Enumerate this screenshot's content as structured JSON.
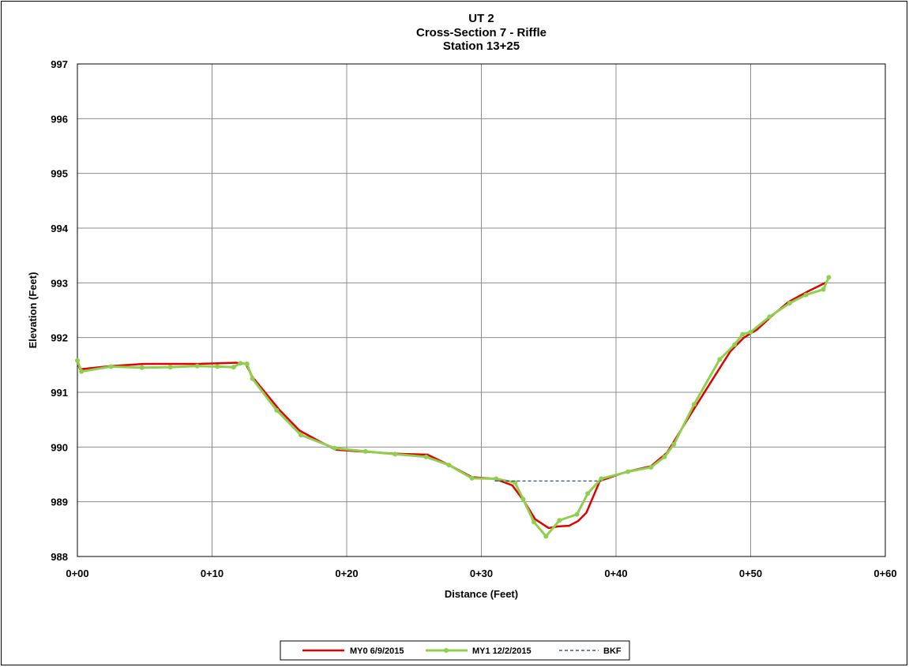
{
  "chart_data": {
    "type": "line",
    "title": [
      "UT 2",
      "Cross-Section 7 - Riffle",
      "Station 13+25"
    ],
    "xlabel": "Distance (Feet)",
    "ylabel": "Elevation (Feet)",
    "xlim": [
      0,
      60
    ],
    "ylim": [
      988,
      997
    ],
    "x_ticks": [
      {
        "value": 0,
        "label": "0+00"
      },
      {
        "value": 10,
        "label": "0+10"
      },
      {
        "value": 20,
        "label": "0+20"
      },
      {
        "value": 30,
        "label": "0+30"
      },
      {
        "value": 40,
        "label": "0+40"
      },
      {
        "value": 50,
        "label": "0+50"
      },
      {
        "value": 60,
        "label": "0+60"
      }
    ],
    "y_ticks": [
      {
        "value": 988,
        "label": "988"
      },
      {
        "value": 989,
        "label": "989"
      },
      {
        "value": 990,
        "label": "990"
      },
      {
        "value": 991,
        "label": "991"
      },
      {
        "value": 992,
        "label": "992"
      },
      {
        "value": 993,
        "label": "993"
      },
      {
        "value": 994,
        "label": "994"
      },
      {
        "value": 995,
        "label": "995"
      },
      {
        "value": 996,
        "label": "996"
      },
      {
        "value": 997,
        "label": "997"
      }
    ],
    "grid": true,
    "legend_position": "bottom",
    "series": [
      {
        "name": "MY0 6/9/2015",
        "color": "#e00000",
        "line_style": "solid",
        "markers": false,
        "points": [
          [
            0.0,
            991.55
          ],
          [
            0.2,
            991.42
          ],
          [
            2.5,
            991.48
          ],
          [
            5.0,
            991.52
          ],
          [
            7.0,
            991.52
          ],
          [
            9.0,
            991.52
          ],
          [
            10.5,
            991.53
          ],
          [
            11.8,
            991.54
          ],
          [
            12.5,
            991.52
          ],
          [
            13.0,
            991.28
          ],
          [
            15.0,
            990.68
          ],
          [
            16.5,
            990.3
          ],
          [
            18.0,
            990.1
          ],
          [
            19.2,
            989.95
          ],
          [
            21.0,
            989.92
          ],
          [
            23.5,
            989.88
          ],
          [
            26.0,
            989.86
          ],
          [
            27.7,
            989.66
          ],
          [
            29.3,
            989.45
          ],
          [
            31.0,
            989.42
          ],
          [
            32.3,
            989.3
          ],
          [
            33.2,
            989.0
          ],
          [
            34.0,
            988.68
          ],
          [
            35.0,
            988.52
          ],
          [
            35.7,
            988.55
          ],
          [
            36.5,
            988.56
          ],
          [
            37.2,
            988.65
          ],
          [
            37.8,
            988.8
          ],
          [
            38.8,
            989.38
          ],
          [
            40.8,
            989.55
          ],
          [
            42.6,
            989.65
          ],
          [
            43.8,
            989.9
          ],
          [
            45.8,
            990.7
          ],
          [
            47.8,
            991.48
          ],
          [
            48.5,
            991.75
          ],
          [
            49.5,
            992.0
          ],
          [
            50.5,
            992.15
          ],
          [
            51.5,
            992.38
          ],
          [
            52.8,
            992.65
          ],
          [
            54.3,
            992.85
          ],
          [
            55.7,
            993.02
          ]
        ]
      },
      {
        "name": "MY1 12/2/2015",
        "color": "#8fcf4f",
        "line_style": "solid",
        "markers": true,
        "points": [
          [
            0.0,
            991.58
          ],
          [
            0.3,
            991.38
          ],
          [
            2.5,
            991.47
          ],
          [
            4.8,
            991.45
          ],
          [
            6.9,
            991.46
          ],
          [
            8.9,
            991.48
          ],
          [
            10.4,
            991.47
          ],
          [
            11.6,
            991.46
          ],
          [
            12.1,
            991.53
          ],
          [
            12.6,
            991.52
          ],
          [
            13.0,
            991.25
          ],
          [
            14.8,
            990.67
          ],
          [
            16.6,
            990.22
          ],
          [
            19.1,
            989.98
          ],
          [
            21.4,
            989.92
          ],
          [
            23.6,
            989.87
          ],
          [
            25.9,
            989.82
          ],
          [
            27.6,
            989.67
          ],
          [
            29.3,
            989.43
          ],
          [
            31.1,
            989.42
          ],
          [
            32.5,
            989.35
          ],
          [
            33.1,
            989.05
          ],
          [
            33.9,
            988.63
          ],
          [
            34.8,
            988.37
          ],
          [
            35.8,
            988.66
          ],
          [
            37.1,
            988.77
          ],
          [
            37.9,
            989.15
          ],
          [
            38.9,
            989.42
          ],
          [
            40.9,
            989.55
          ],
          [
            42.6,
            989.63
          ],
          [
            43.6,
            989.82
          ],
          [
            44.3,
            990.05
          ],
          [
            45.8,
            990.78
          ],
          [
            47.7,
            991.6
          ],
          [
            48.8,
            991.87
          ],
          [
            49.4,
            992.06
          ],
          [
            50.0,
            992.1
          ],
          [
            51.4,
            992.38
          ],
          [
            52.9,
            992.63
          ],
          [
            54.1,
            992.78
          ],
          [
            55.4,
            992.88
          ],
          [
            55.8,
            993.1
          ]
        ]
      },
      {
        "name": "BKF",
        "color": "#1f3a68",
        "line_style": "dashed",
        "markers": false,
        "points": [
          [
            31.0,
            989.38
          ],
          [
            38.9,
            989.38
          ]
        ]
      }
    ]
  }
}
